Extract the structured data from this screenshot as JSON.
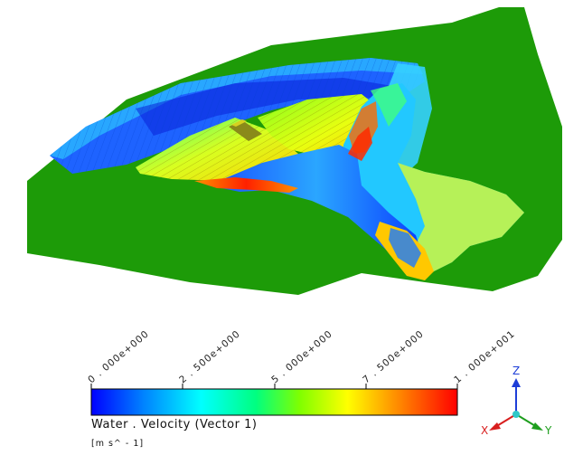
{
  "legend": {
    "title": "Water . Velocity  (Vector  1)",
    "unit": "[m  s^ - 1]",
    "ticks": [
      "0 . 000e+000",
      "2 . 500e+000",
      "5 . 000e+000",
      "7 . 500e+000",
      "1 . 000e+001"
    ],
    "range": [
      0,
      10
    ],
    "colormap": [
      "#0000ff",
      "#0080ff",
      "#00ffff",
      "#00ff80",
      "#80ff00",
      "#ffff00",
      "#ff8000",
      "#ff0000"
    ]
  },
  "axes": {
    "x_label": "X",
    "y_label": "Y",
    "z_label": "Z",
    "x_color": "#d81e1e",
    "y_color": "#1e9e1e",
    "z_color": "#1e3ed8"
  },
  "scene": {
    "terrain_color": "#1d9b08",
    "background_color": "#ffffff"
  }
}
